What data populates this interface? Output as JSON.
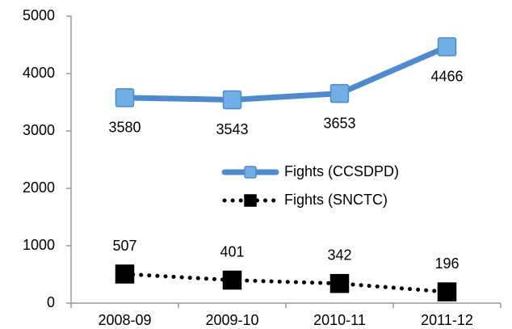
{
  "chart_data": {
    "type": "line",
    "categories": [
      "2008-09",
      "2009-10",
      "2010-11",
      "2011-12"
    ],
    "series": [
      {
        "name": "Fights (CCSDPD)",
        "color": "#4f8bcc",
        "marker_fill": "#72aee6",
        "line_style": "solid",
        "label_position": "below",
        "values": [
          3580,
          3543,
          3653,
          4466
        ]
      },
      {
        "name": "Fights (SNCTC)",
        "color": "#000000",
        "marker_fill": "#000000",
        "line_style": "dotted",
        "label_position": "above",
        "values": [
          507,
          401,
          342,
          196
        ]
      }
    ],
    "ylim": [
      0,
      5000
    ],
    "yticks": [
      0,
      1000,
      2000,
      3000,
      4000,
      5000
    ],
    "grid": false,
    "legend": "center-right"
  }
}
